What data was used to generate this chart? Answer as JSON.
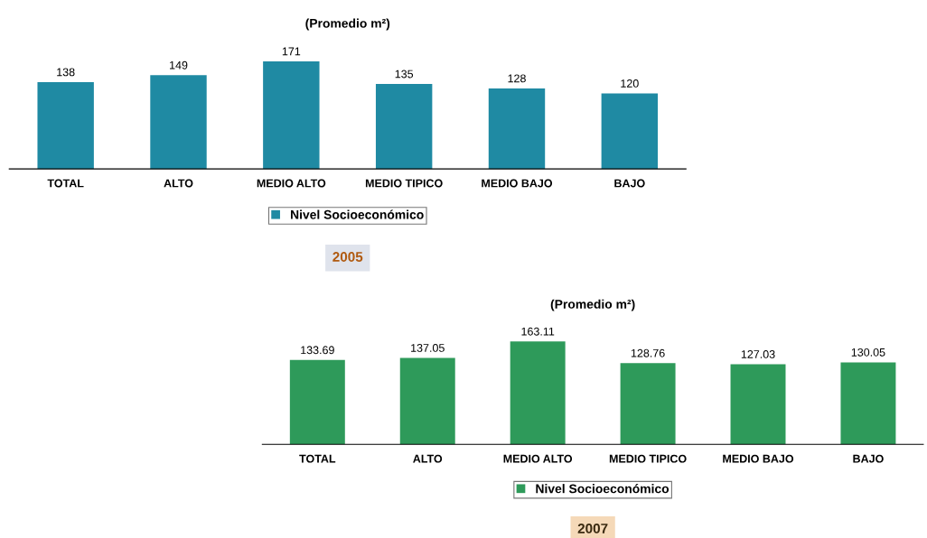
{
  "chart_data": [
    {
      "type": "bar",
      "title": "(Promedio m²)",
      "categories": [
        "TOTAL",
        "ALTO",
        "MEDIO ALTO",
        "MEDIO TIPICO",
        "MEDIO BAJO",
        "BAJO"
      ],
      "series": [
        {
          "name": "Nivel Socioeconómico",
          "color": "#1f8aa3",
          "values": [
            138,
            149,
            171,
            135,
            128,
            120
          ]
        }
      ],
      "data_labels": true,
      "legend": "bottom",
      "grid": false,
      "annotations": [
        "2005"
      ]
    },
    {
      "type": "bar",
      "title": "(Promedio m²)",
      "categories": [
        "TOTAL",
        "ALTO",
        "MEDIO ALTO",
        "MEDIO TIPICO",
        "MEDIO BAJO",
        "BAJO"
      ],
      "series": [
        {
          "name": "Nivel Socioeconómico",
          "color": "#2e9a5a",
          "values": [
            133.69,
            137.05,
            163.11,
            128.76,
            127.03,
            130.05
          ]
        }
      ],
      "data_labels": true,
      "legend": "bottom",
      "grid": false,
      "annotations": [
        "2007"
      ]
    }
  ]
}
